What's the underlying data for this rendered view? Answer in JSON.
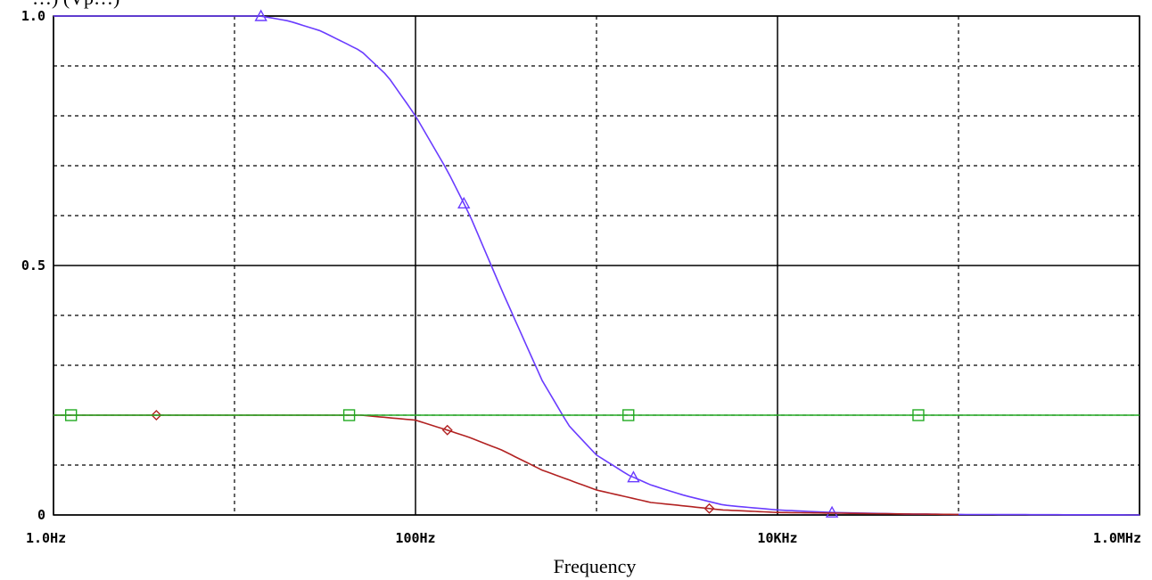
{
  "chart_data": {
    "type": "line",
    "title": "",
    "top_label_clipped": "…) (Vp…)",
    "xlabel": "Frequency",
    "ylabel": "",
    "x_scale": "log",
    "xlim": [
      1,
      1000000
    ],
    "ylim": [
      0,
      1.0
    ],
    "grid": true,
    "x_ticks": [
      {
        "value": 1,
        "label": "1.0Hz"
      },
      {
        "value": 100,
        "label": "100Hz"
      },
      {
        "value": 10000,
        "label": "10KHz"
      },
      {
        "value": 1000000,
        "label": "1.0MHz"
      }
    ],
    "y_ticks": [
      {
        "value": 0,
        "label": "0"
      },
      {
        "value": 0.5,
        "label": "0.5"
      },
      {
        "value": 1.0,
        "label": "1.0"
      }
    ],
    "series": [
      {
        "color": "#6a3cff",
        "marker": "triangle",
        "x": [
          1,
          10,
          14,
          20,
          30,
          50,
          70,
          100,
          150,
          200,
          300,
          500,
          700,
          1000,
          1500,
          2000,
          3000,
          5000,
          7000,
          10000,
          20000,
          50000,
          100000,
          1000000
        ],
        "y": [
          1.0,
          1.0,
          1.0,
          0.99,
          0.97,
          0.93,
          0.88,
          0.8,
          0.69,
          0.6,
          0.45,
          0.27,
          0.18,
          0.12,
          0.08,
          0.06,
          0.04,
          0.02,
          0.015,
          0.01,
          0.005,
          0.002,
          0.001,
          0.0
        ],
        "marker_x": [
          14,
          185,
          1600,
          20000
        ]
      },
      {
        "color": "#b22222",
        "marker": "diamond",
        "x": [
          1,
          10,
          30,
          50,
          100,
          150,
          200,
          300,
          500,
          1000,
          2000,
          5000,
          10000,
          50000,
          100000
        ],
        "y": [
          0.2,
          0.2,
          0.2,
          0.2,
          0.19,
          0.17,
          0.155,
          0.13,
          0.09,
          0.05,
          0.025,
          0.01,
          0.005,
          0.002,
          0.001
        ],
        "marker_x": [
          3.7,
          150,
          4200
        ]
      },
      {
        "color": "#22aa22",
        "marker": "square",
        "x": [
          1,
          1000000
        ],
        "y": [
          0.2,
          0.2
        ],
        "marker_x": [
          1.25,
          43,
          1500,
          60000
        ]
      }
    ]
  }
}
